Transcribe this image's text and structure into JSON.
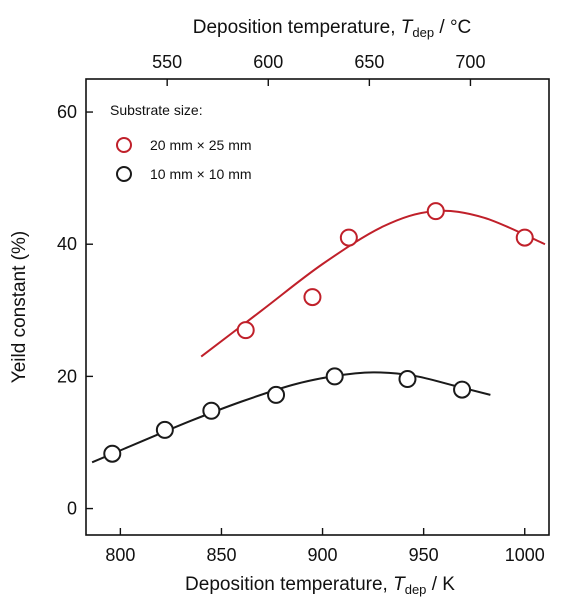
{
  "chart_data": {
    "type": "scatter",
    "xlabel": {
      "prefix": "Deposition temperature, ",
      "symbol": "T",
      "subscript": "dep",
      "unit": " / K"
    },
    "x2label": {
      "prefix": "Deposition temperature, ",
      "symbol": "T",
      "subscript": "dep",
      "unit": " / °C"
    },
    "ylabel": "Yeild constant (%)",
    "xlim": [
      783,
      1012
    ],
    "ylim": [
      -4,
      65
    ],
    "x_ticks": [
      800,
      850,
      900,
      950,
      1000
    ],
    "x2_ticks": [
      550,
      600,
      650,
      700
    ],
    "y_ticks": [
      0,
      20,
      40,
      60
    ],
    "legend": {
      "title": "Substrate size:",
      "position": "top-left"
    },
    "grid": false,
    "series": [
      {
        "name": "20 mm × 25 mm",
        "color": "#c0202a",
        "points": [
          {
            "x": 862,
            "y": 27
          },
          {
            "x": 895,
            "y": 32
          },
          {
            "x": 913,
            "y": 41
          },
          {
            "x": 956,
            "y": 45
          },
          {
            "x": 1000,
            "y": 41
          }
        ],
        "fit": [
          {
            "x": 840,
            "y": 23
          },
          {
            "x": 870,
            "y": 30
          },
          {
            "x": 900,
            "y": 37
          },
          {
            "x": 930,
            "y": 42.7
          },
          {
            "x": 955,
            "y": 45
          },
          {
            "x": 980,
            "y": 44
          },
          {
            "x": 1010,
            "y": 40
          }
        ]
      },
      {
        "name": "10 mm × 10 mm",
        "color": "#1a1a1a",
        "points": [
          {
            "x": 796,
            "y": 8.3
          },
          {
            "x": 822,
            "y": 11.9
          },
          {
            "x": 845,
            "y": 14.8
          },
          {
            "x": 877,
            "y": 17.2
          },
          {
            "x": 906,
            "y": 20
          },
          {
            "x": 942,
            "y": 19.6
          },
          {
            "x": 969,
            "y": 18
          }
        ],
        "fit": [
          {
            "x": 786,
            "y": 7
          },
          {
            "x": 810,
            "y": 10.1
          },
          {
            "x": 835,
            "y": 13.3
          },
          {
            "x": 860,
            "y": 16.2
          },
          {
            "x": 885,
            "y": 18.7
          },
          {
            "x": 905,
            "y": 20
          },
          {
            "x": 925,
            "y": 20.6
          },
          {
            "x": 945,
            "y": 20.1
          },
          {
            "x": 965,
            "y": 18.6
          },
          {
            "x": 983,
            "y": 17.2
          }
        ]
      }
    ]
  }
}
